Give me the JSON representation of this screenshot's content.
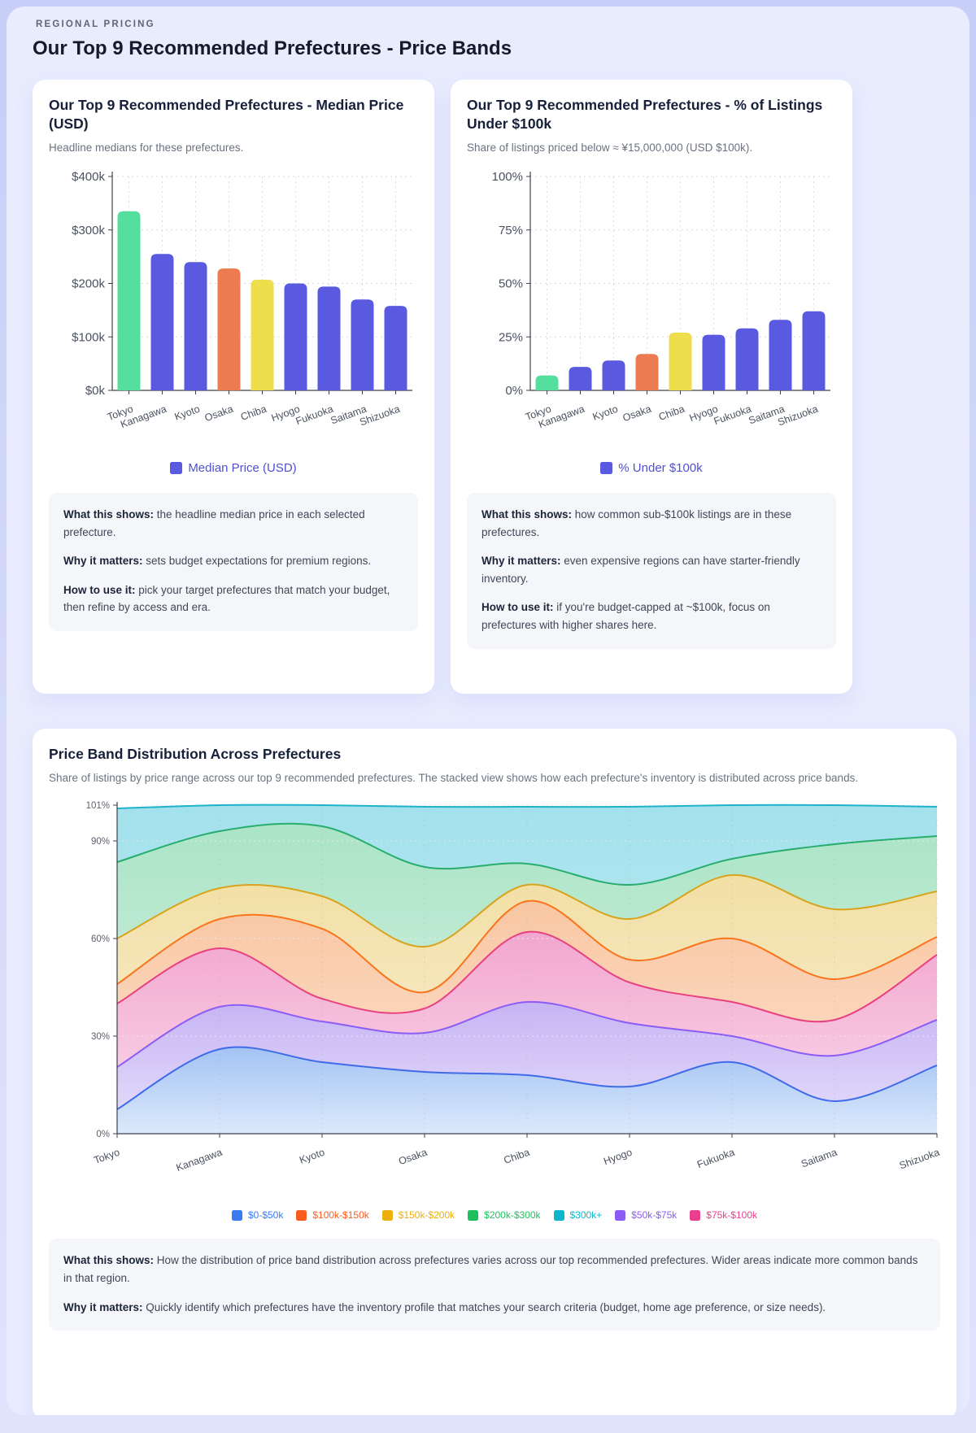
{
  "page": {
    "eyebrow": "REGIONAL PRICING",
    "title": "Our Top 9 Recommended Prefectures - Price Bands"
  },
  "colors": {
    "accent_indigo": "#5a5ae0",
    "legend_text_indigo": "#5150cf",
    "panel_bg": "#e9ecfd",
    "card_bg": "#ffffff",
    "info_bg": "#f4f6fa"
  },
  "cards": {
    "median": {
      "title": "Our Top 9 Recommended Prefectures - Median Price (USD)",
      "subtitle": "Headline medians for these prefectures.",
      "legend": {
        "label": "Median Price (USD)",
        "swatch": "#5a5ae0",
        "text_color": "#5150cf"
      },
      "info": [
        {
          "label": "What this shows:",
          "text": "the headline median price in each selected prefecture."
        },
        {
          "label": "Why it matters:",
          "text": "sets budget expectations for premium regions."
        },
        {
          "label": "How to use it:",
          "text": "pick your target prefectures that match your budget, then refine by access and era."
        }
      ]
    },
    "under100k": {
      "title": "Our Top 9 Recommended Prefectures - % of Listings Under $100k",
      "subtitle": "Share of listings priced below ≈ ¥15,000,000 (USD $100k).",
      "legend": {
        "label": "% Under $100k",
        "swatch": "#5a5ae0",
        "text_color": "#5150cf"
      },
      "info": [
        {
          "label": "What this shows:",
          "text": "how common sub-$100k listings are in these prefectures."
        },
        {
          "label": "Why it matters:",
          "text": "even expensive regions can have starter-friendly inventory."
        },
        {
          "label": "How to use it:",
          "text": "if you're budget-capped at ~$100k, focus on prefectures with higher shares here."
        }
      ]
    },
    "distribution": {
      "title": "Price Band Distribution Across Prefectures",
      "subtitle": "Share of listings by price range across our top 9 recommended prefectures. The stacked view shows how each prefecture's inventory is distributed across price bands.",
      "info": [
        {
          "label": "What this shows:",
          "text": "How the distribution of price band distribution across prefectures varies across our top recommended prefectures. Wider areas indicate more common bands in that region."
        },
        {
          "label": "Why it matters:",
          "text": "Quickly identify which prefectures have the inventory profile that matches your search criteria (budget, home age preference, or size needs)."
        }
      ]
    }
  },
  "chart_data": [
    {
      "id": "median_price",
      "type": "bar",
      "title": "Our Top 9 Recommended Prefectures - Median Price (USD)",
      "categories": [
        "Tokyo",
        "Kanagawa",
        "Kyoto",
        "Osaka",
        "Chiba",
        "Hyogo",
        "Fukuoka",
        "Saitama",
        "Shizuoka"
      ],
      "values": [
        335,
        255,
        240,
        228,
        207,
        200,
        194,
        170,
        158
      ],
      "value_unit": "USD thousands",
      "bar_colors": [
        "#54df9f",
        "#5a5ae0",
        "#5a5ae0",
        "#ec7b51",
        "#eede4c",
        "#5a5ae0",
        "#5a5ae0",
        "#5a5ae0",
        "#5a5ae0"
      ],
      "ymax": 400,
      "yticks": [
        {
          "v": 0,
          "label": "$0k"
        },
        {
          "v": 100,
          "label": "$100k"
        },
        {
          "v": 200,
          "label": "$200k"
        },
        {
          "v": 300,
          "label": "$300k"
        },
        {
          "v": 400,
          "label": "$400k"
        }
      ],
      "legend": "Median Price (USD)",
      "grid": true
    },
    {
      "id": "pct_under_100k",
      "type": "bar",
      "title": "Our Top 9 Recommended Prefectures - % of Listings Under $100k",
      "categories": [
        "Tokyo",
        "Kanagawa",
        "Kyoto",
        "Osaka",
        "Chiba",
        "Hyogo",
        "Fukuoka",
        "Saitama",
        "Shizuoka"
      ],
      "values": [
        7,
        11,
        14,
        17,
        27,
        26,
        29,
        33,
        37
      ],
      "value_unit": "percent",
      "bar_colors": [
        "#54df9f",
        "#5a5ae0",
        "#5a5ae0",
        "#ec7b51",
        "#eede4c",
        "#5a5ae0",
        "#5a5ae0",
        "#5a5ae0",
        "#5a5ae0"
      ],
      "ymax": 100,
      "yticks": [
        {
          "v": 0,
          "label": "0%"
        },
        {
          "v": 25,
          "label": "25%"
        },
        {
          "v": 50,
          "label": "50%"
        },
        {
          "v": 75,
          "label": "75%"
        },
        {
          "v": 100,
          "label": "100%"
        }
      ],
      "legend": "% Under $100k",
      "grid": true
    },
    {
      "id": "price_band_distribution",
      "type": "area",
      "title": "Price Band Distribution Across Prefectures",
      "categories": [
        "Tokyo",
        "Kanagawa",
        "Kyoto",
        "Osaka",
        "Chiba",
        "Hyogo",
        "Fukuoka",
        "Saitama",
        "Shizuoka"
      ],
      "value_unit": "percent of listings",
      "series": [
        {
          "name": "$0-$50k",
          "stroke": "#3e6be8",
          "swatch": "#3b7bf0",
          "fill_top": "#a3c3f4",
          "fill_bottom": "#dce9fb",
          "values": [
            7.5,
            26,
            22,
            19,
            18,
            14.5,
            22,
            10,
            21
          ]
        },
        {
          "name": "$50k-$75k",
          "stroke": "#8b5cf6",
          "swatch": "#8a5cf5",
          "fill_top": "#c6b4f4",
          "fill_bottom": "#e7e0fb",
          "values": [
            13,
            13,
            12.5,
            12,
            22.5,
            19.5,
            8,
            14,
            14
          ]
        },
        {
          "name": "$75k-$100k",
          "stroke": "#e8417f",
          "swatch": "#ea3f8d",
          "fill_top": "#f2a6cf",
          "fill_bottom": "#fadcec",
          "values": [
            19.5,
            18,
            7,
            7.5,
            21.5,
            12.5,
            10.5,
            11,
            20
          ]
        },
        {
          "name": "$100k-$150k",
          "stroke": "#f9741c",
          "swatch": "#f95c1d",
          "fill_top": "#f9c6a2",
          "fill_bottom": "#fde4d1",
          "values": [
            6,
            9,
            21.5,
            5,
            9.5,
            7,
            19.5,
            12.5,
            5.5
          ]
        },
        {
          "name": "$150k-$200k",
          "stroke": "#d8a31d",
          "swatch": "#ecb00a",
          "fill_top": "#f2dfa4",
          "fill_bottom": "#faf0d6",
          "values": [
            14,
            9.5,
            10,
            14,
            5,
            12.5,
            19.5,
            21.5,
            14
          ]
        },
        {
          "name": "$200k-$300k",
          "stroke": "#27ad6e",
          "swatch": "#1fbf5f",
          "fill_top": "#abe4c6",
          "fill_bottom": "#d8f3e5",
          "values": [
            23.5,
            17.5,
            21.5,
            24.5,
            6.5,
            10.5,
            5,
            20,
            17
          ]
        },
        {
          "name": "$300k+",
          "stroke": "#1fb3cb",
          "swatch": "#0db6ca",
          "fill_top": "#a2e1ec",
          "fill_bottom": "#ccf0f6",
          "values": [
            16.5,
            8,
            6.5,
            18.5,
            17.5,
            24,
            16.5,
            12,
            9
          ]
        }
      ],
      "legend_order": [
        0,
        3,
        4,
        5,
        6,
        1,
        2
      ],
      "ymax": 101,
      "yticks": [
        {
          "v": 0,
          "label": "0%"
        },
        {
          "v": 30,
          "label": "30%"
        },
        {
          "v": 60,
          "label": "60%"
        },
        {
          "v": 90,
          "label": "90%"
        },
        {
          "v": 101,
          "label": "101%"
        }
      ],
      "grid": true,
      "legend_position": "bottom"
    }
  ]
}
